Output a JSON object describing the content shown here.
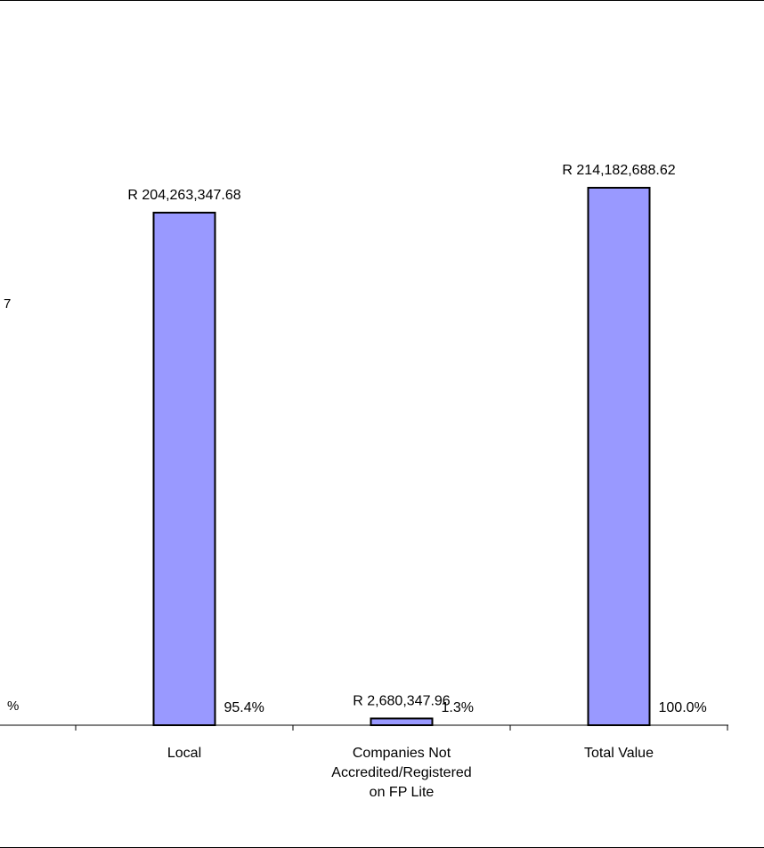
{
  "chart_data": {
    "type": "bar",
    "categories": [
      "Local",
      "Companies Not Accredited/Registered on FP Lite",
      "Total Value"
    ],
    "category_label_lines": [
      [
        "Local"
      ],
      [
        "Companies Not",
        "Accredited/Registered",
        "on FP Lite"
      ],
      [
        "Total Value"
      ]
    ],
    "values": [
      204263347.68,
      2680347.96,
      214182688.62
    ],
    "value_labels": [
      "R 204,263,347.68",
      "R 2,680,347.96",
      "R 214,182,688.62"
    ],
    "percent_labels": [
      "95.4%",
      "1.3%",
      "100.0%"
    ],
    "bar_fill": "#9999ff",
    "bar_stroke": "#000000",
    "ylim": [
      0,
      214182688.62
    ],
    "grid": false,
    "legend": "none"
  },
  "cropped_left_fragments": {
    "upper": "7",
    "lower": "%"
  }
}
